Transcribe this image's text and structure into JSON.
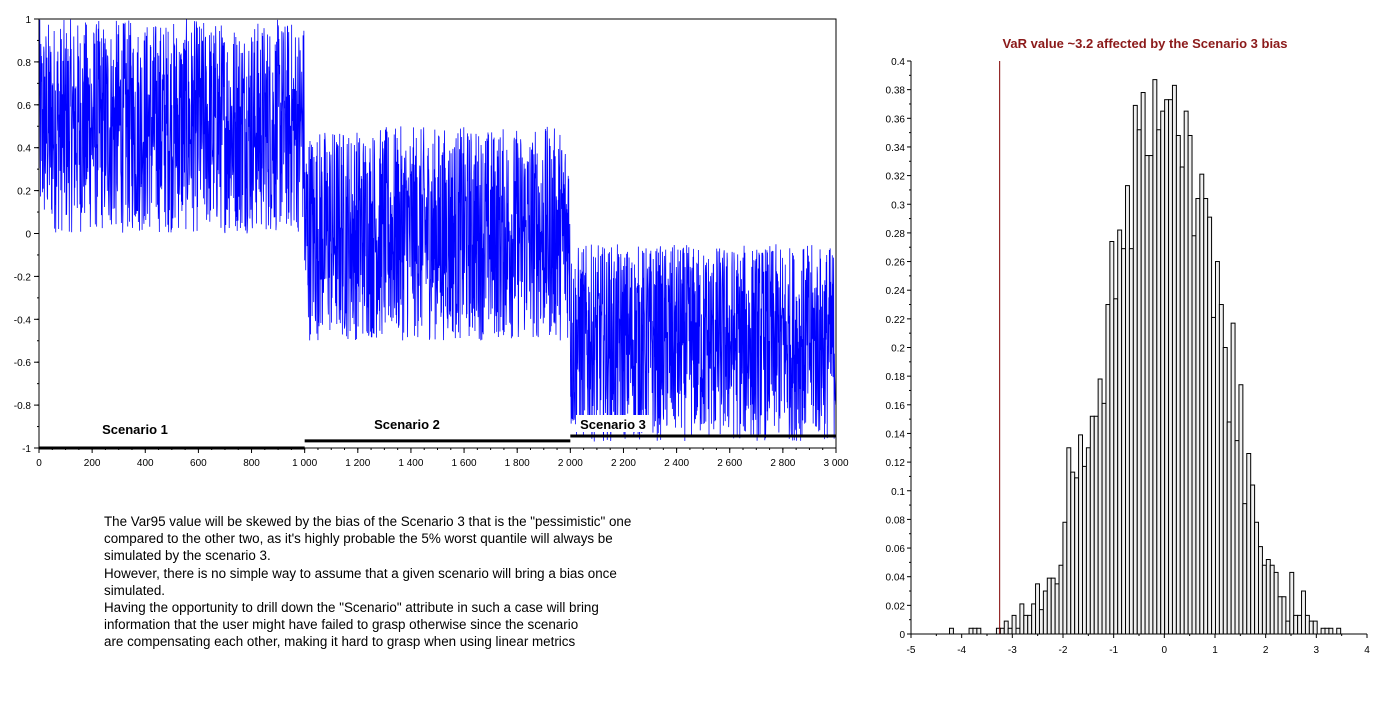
{
  "chart_data": [
    {
      "type": "line",
      "title": "",
      "xlabel": "",
      "ylabel": "",
      "xlim": [
        0,
        3000
      ],
      "ylim": [
        -1,
        1
      ],
      "grid": false,
      "line_color": "#0000ff",
      "x_tick_labels": [
        "0",
        "200",
        "400",
        "600",
        "800",
        "1 000",
        "1 200",
        "1 400",
        "1 600",
        "1 800",
        "2 000",
        "2 200",
        "2 400",
        "2 600",
        "2 800",
        "3 000"
      ],
      "x_ticks": [
        0,
        200,
        400,
        600,
        800,
        1000,
        1200,
        1400,
        1600,
        1800,
        2000,
        2200,
        2400,
        2600,
        2800,
        3000
      ],
      "y_tick_labels": [
        "-1",
        "-0.8",
        "-0.6",
        "-0.4",
        "-0.2",
        "0",
        "0.2",
        "0.4",
        "0.6",
        "0.8",
        "1"
      ],
      "y_ticks": [
        -1,
        -0.8,
        -0.6,
        -0.4,
        -0.2,
        0,
        0.2,
        0.4,
        0.6,
        0.8,
        1
      ],
      "segments": [
        {
          "label": "Scenario 1",
          "x_range": [
            0,
            1000
          ],
          "y_range": [
            0,
            1
          ],
          "marker_y": -1
        },
        {
          "label": "Scenario 2",
          "x_range": [
            1000,
            2000
          ],
          "y_range": [
            -0.5,
            0.5
          ],
          "marker_y": -0.967
        },
        {
          "label": "Scenario 3",
          "x_range": [
            2000,
            3000
          ],
          "y_range": [
            -0.97,
            -0.05
          ],
          "marker_y": -0.944
        }
      ]
    },
    {
      "type": "bar",
      "title": "VaR value ~3.2 affected by the Scenario 3 bias",
      "title_color": "#8b1a1a",
      "xlabel": "",
      "ylabel": "",
      "xlim": [
        -5,
        4
      ],
      "ylim": [
        0,
        0.4
      ],
      "grid": false,
      "var_line_x": -3.25,
      "var_line_color": "#800000",
      "bar_fill": "#f0f0f0",
      "bin_start": -4.24,
      "bin_width": 0.0772,
      "values": [
        0.004,
        0,
        0,
        0,
        0,
        0.004,
        0.004,
        0.004,
        0,
        0,
        0,
        0,
        0.004,
        0.004,
        0.009,
        0.004,
        0.013,
        0.004,
        0.021,
        0.013,
        0.013,
        0.021,
        0.035,
        0.017,
        0.03,
        0.039,
        0.039,
        0.035,
        0.048,
        0.078,
        0.13,
        0.113,
        0.109,
        0.139,
        0.117,
        0.13,
        0.152,
        0.152,
        0.178,
        0.161,
        0.23,
        0.274,
        0.234,
        0.282,
        0.269,
        0.313,
        0.269,
        0.369,
        0.352,
        0.378,
        0.334,
        0.334,
        0.387,
        0.352,
        0.365,
        0.373,
        0.373,
        0.383,
        0.348,
        0.326,
        0.365,
        0.348,
        0.278,
        0.304,
        0.321,
        0.304,
        0.291,
        0.221,
        0.26,
        0.23,
        0.2,
        0.148,
        0.217,
        0.135,
        0.174,
        0.091,
        0.126,
        0.104,
        0.078,
        0.061,
        0.048,
        0.052,
        0.048,
        0.043,
        0.026,
        0.026,
        0.009,
        0.043,
        0.013,
        0.013,
        0.03,
        0.013,
        0.009,
        0.009,
        0,
        0.004,
        0.004,
        0.004,
        0,
        0.004
      ],
      "x_tick_labels": [
        "-5",
        "-4",
        "-3",
        "-2",
        "-1",
        "0",
        "1",
        "2",
        "3",
        "4"
      ],
      "x_ticks": [
        -5,
        -4,
        -3,
        -2,
        -1,
        0,
        1,
        2,
        3,
        4
      ],
      "y_tick_labels": [
        "0",
        "0.02",
        "0.04",
        "0.06",
        "0.08",
        "0.1",
        "0.12",
        "0.14",
        "0.16",
        "0.18",
        "0.2",
        "0.22",
        "0.24",
        "0.26",
        "0.28",
        "0.3",
        "0.32",
        "0.34",
        "0.36",
        "0.38",
        "0.4"
      ],
      "y_ticks": [
        0,
        0.02,
        0.04,
        0.06,
        0.08,
        0.1,
        0.12,
        0.14,
        0.16,
        0.18,
        0.2,
        0.22,
        0.24,
        0.26,
        0.28,
        0.3,
        0.32,
        0.34,
        0.36,
        0.38,
        0.4
      ]
    }
  ],
  "note": {
    "lines": [
      "The Var95 value will be skewed by the bias of the Scenario 3 that is the \"pessimistic\" one",
      "compared to the other two, as it's highly probable the 5% worst quantile will always be",
      "simulated by the scenario 3.",
      "However, there is no simple way to assume that a given scenario will bring a bias once",
      "simulated.",
      "Having the opportunity to drill down the \"Scenario\" attribute in such a case will bring",
      "information that the user might have failed to grasp otherwise since the scenario",
      "are compensating each other, making it hard to grasp when using linear metrics"
    ]
  }
}
